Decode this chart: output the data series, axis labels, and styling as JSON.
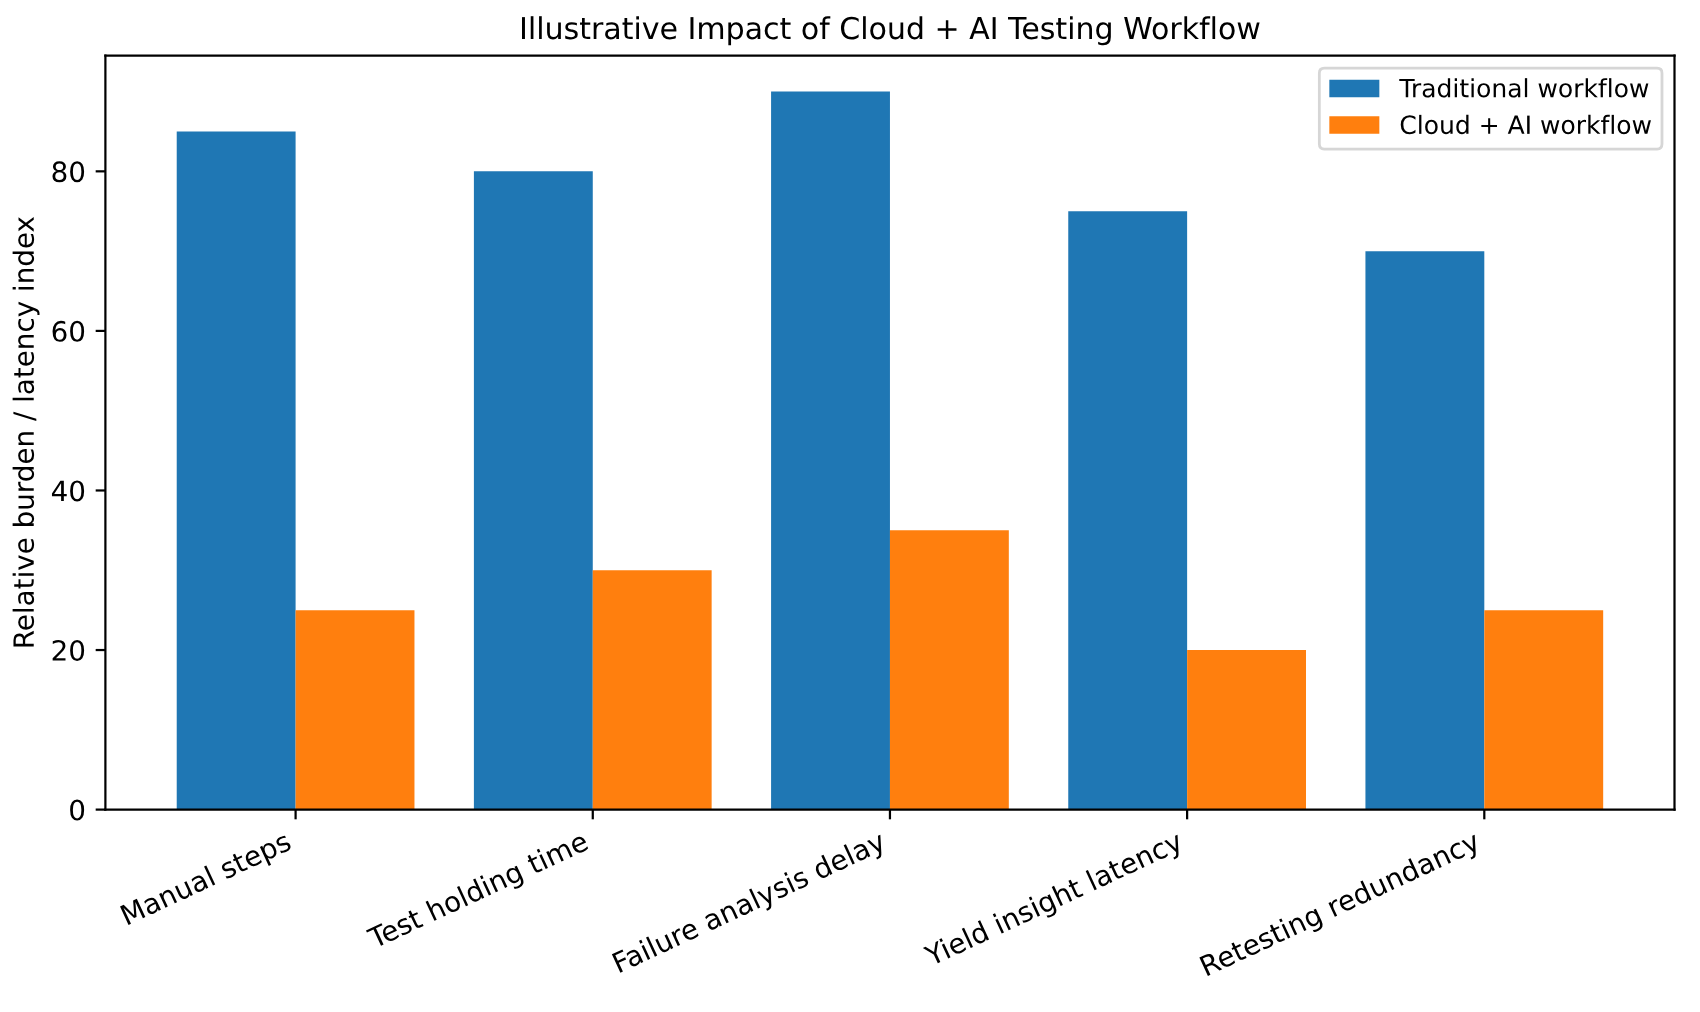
{
  "chart_data": {
    "type": "bar",
    "title": "Illustrative Impact of Cloud + AI Testing Workflow",
    "ylabel": "Relative burden / latency index",
    "categories": [
      "Manual steps",
      "Test holding time",
      "Failure analysis delay",
      "Yield insight latency",
      "Retesting redundancy"
    ],
    "series": [
      {
        "name": "Traditional workflow",
        "color": "#1f77b4",
        "values": [
          85,
          80,
          90,
          75,
          70
        ]
      },
      {
        "name": "Cloud + AI workflow",
        "color": "#ff7f0e",
        "values": [
          25,
          30,
          35,
          20,
          25
        ]
      }
    ],
    "ylim": [
      0,
      94.5
    ],
    "yticks": [
      0,
      20,
      40,
      60,
      80
    ],
    "grid": false,
    "legend": "top right"
  }
}
